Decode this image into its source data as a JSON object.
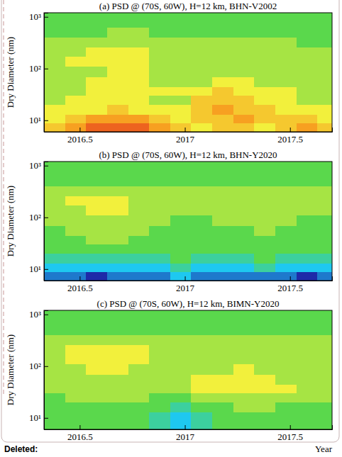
{
  "chart_data": [
    {
      "type": "heatmap",
      "title": "(a) PSD @ (70S, 60W), H=12 km, BHN-V2002",
      "ylabel": "Dry Diameter (nm)",
      "log": "y",
      "xlim": [
        2016.33,
        2017.7
      ],
      "xticks": [
        2016.5,
        2017,
        2017.5
      ],
      "ylim": [
        6,
        1200
      ],
      "yticks": [
        {
          "value": 10,
          "label": "10¹"
        },
        {
          "value": 100,
          "label": "10²"
        },
        {
          "value": 1000,
          "label": "10³"
        }
      ],
      "x_bins": [
        2016.33,
        2016.43,
        2016.53,
        2016.63,
        2016.73,
        2016.83,
        2016.93,
        2017.03,
        2017.13,
        2017.23,
        2017.33,
        2017.43,
        2017.53,
        2017.63,
        2017.73
      ],
      "y_bins": [
        6,
        9,
        13,
        20,
        30,
        45,
        70,
        110,
        170,
        260,
        400,
        620,
        1200
      ],
      "zlim": [
        0,
        10
      ],
      "values": [
        [
          7,
          8,
          9,
          9,
          9,
          8,
          7,
          6,
          7,
          7,
          6,
          7,
          8,
          7
        ],
        [
          6,
          7,
          8,
          8,
          8,
          7,
          6,
          7,
          7,
          8,
          7,
          7,
          7,
          6
        ],
        [
          6,
          6,
          6,
          7,
          6,
          6,
          6,
          7,
          8,
          7,
          7,
          6,
          6,
          6
        ],
        [
          5,
          6,
          6,
          6,
          6,
          5,
          5,
          7,
          7,
          7,
          6,
          6,
          5,
          5
        ],
        [
          5,
          5,
          6,
          6,
          6,
          6,
          6,
          6,
          7,
          6,
          6,
          6,
          5,
          5
        ],
        [
          5,
          5,
          6,
          6,
          6,
          5,
          5,
          5,
          6,
          6,
          5,
          5,
          5,
          5
        ],
        [
          5,
          5,
          5,
          6,
          6,
          5,
          5,
          5,
          5,
          5,
          5,
          5,
          5,
          5
        ],
        [
          5,
          6,
          6,
          6,
          6,
          5,
          5,
          5,
          5,
          5,
          5,
          5,
          5,
          5
        ],
        [
          5,
          5,
          6,
          6,
          6,
          5,
          5,
          5,
          5,
          5,
          5,
          5,
          5,
          5
        ],
        [
          5,
          5,
          5,
          5,
          5,
          5,
          5,
          5,
          5,
          5,
          5,
          5,
          4,
          4
        ],
        [
          4,
          4,
          4,
          5,
          5,
          4,
          4,
          4,
          4,
          4,
          4,
          4,
          4,
          4
        ],
        [
          4,
          4,
          4,
          4,
          4,
          4,
          4,
          4,
          4,
          4,
          4,
          4,
          4,
          4
        ]
      ]
    },
    {
      "type": "heatmap",
      "title": "(b) PSD @ (70S, 60W), H=12 km, BHN-Y2020",
      "ylabel": "Dry Diameter (nm)",
      "log": "y",
      "xlim": [
        2016.33,
        2017.7
      ],
      "xticks": [
        2016.5,
        2017,
        2017.5
      ],
      "ylim": [
        6,
        1200
      ],
      "yticks": [
        {
          "value": 10,
          "label": "10¹"
        },
        {
          "value": 100,
          "label": "10²"
        },
        {
          "value": 1000,
          "label": "10³"
        }
      ],
      "x_bins": [
        2016.33,
        2016.43,
        2016.53,
        2016.63,
        2016.73,
        2016.83,
        2016.93,
        2017.03,
        2017.13,
        2017.23,
        2017.33,
        2017.43,
        2017.53,
        2017.63,
        2017.73
      ],
      "y_bins": [
        6,
        9,
        13,
        20,
        30,
        45,
        70,
        110,
        170,
        260,
        400,
        620,
        1200
      ],
      "zlim": [
        0,
        10
      ],
      "values": [
        [
          1,
          1,
          0,
          1,
          1,
          1,
          2,
          1,
          1,
          1,
          1,
          1,
          0,
          1
        ],
        [
          2,
          2,
          2,
          2,
          2,
          2,
          3,
          2,
          2,
          2,
          3,
          2,
          2,
          2
        ],
        [
          3,
          3,
          3,
          3,
          3,
          3,
          4,
          3,
          3,
          3,
          4,
          3,
          3,
          3
        ],
        [
          4,
          4,
          4,
          4,
          4,
          4,
          4,
          4,
          4,
          4,
          4,
          4,
          4,
          4
        ],
        [
          4,
          4,
          5,
          5,
          4,
          4,
          4,
          4,
          4,
          4,
          4,
          4,
          4,
          4
        ],
        [
          4,
          5,
          5,
          5,
          5,
          4,
          4,
          4,
          4,
          4,
          5,
          4,
          4,
          4
        ],
        [
          5,
          5,
          5,
          5,
          5,
          5,
          4,
          4,
          5,
          5,
          5,
          5,
          4,
          4
        ],
        [
          5,
          5,
          6,
          6,
          5,
          5,
          5,
          5,
          5,
          5,
          5,
          5,
          5,
          5
        ],
        [
          5,
          6,
          6,
          6,
          5,
          5,
          5,
          5,
          5,
          5,
          5,
          5,
          5,
          5
        ],
        [
          5,
          5,
          5,
          5,
          5,
          5,
          5,
          5,
          5,
          5,
          5,
          5,
          5,
          5
        ],
        [
          4,
          4,
          4,
          4,
          4,
          4,
          4,
          4,
          4,
          4,
          4,
          4,
          4,
          4
        ],
        [
          4,
          4,
          4,
          4,
          4,
          4,
          4,
          4,
          4,
          4,
          4,
          4,
          4,
          4
        ]
      ]
    },
    {
      "type": "heatmap",
      "title": "(c) PSD @ (70S, 60W), H=12 km, BIMN-Y2020",
      "ylabel": "Dry Diameter (nm)",
      "xlabel": "Year",
      "log": "y",
      "xlim": [
        2016.33,
        2017.7
      ],
      "xticks": [
        2016.5,
        2017,
        2017.5
      ],
      "ylim": [
        6,
        1200
      ],
      "yticks": [
        {
          "value": 10,
          "label": "10¹"
        },
        {
          "value": 100,
          "label": "10²"
        },
        {
          "value": 1000,
          "label": "10³"
        }
      ],
      "x_bins": [
        2016.33,
        2016.43,
        2016.53,
        2016.63,
        2016.73,
        2016.83,
        2016.93,
        2017.03,
        2017.13,
        2017.23,
        2017.33,
        2017.43,
        2017.53,
        2017.63,
        2017.73
      ],
      "y_bins": [
        6,
        9,
        13,
        20,
        30,
        45,
        70,
        110,
        170,
        260,
        400,
        620,
        1200
      ],
      "zlim": [
        0,
        10
      ],
      "values": [
        [
          4,
          4,
          4,
          4,
          4,
          3,
          2,
          3,
          4,
          4,
          4,
          4,
          4,
          4
        ],
        [
          4,
          4,
          4,
          4,
          4,
          3,
          2,
          3,
          4,
          4,
          4,
          4,
          4,
          4
        ],
        [
          4,
          4,
          4,
          4,
          4,
          4,
          3,
          4,
          4,
          5,
          5,
          4,
          4,
          4
        ],
        [
          4,
          5,
          5,
          5,
          5,
          4,
          4,
          5,
          5,
          5,
          5,
          5,
          5,
          5
        ],
        [
          5,
          5,
          5,
          5,
          5,
          5,
          5,
          6,
          6,
          6,
          6,
          6,
          5,
          5
        ],
        [
          5,
          5,
          5,
          5,
          5,
          5,
          5,
          6,
          6,
          6,
          6,
          5,
          5,
          5
        ],
        [
          5,
          5,
          6,
          6,
          5,
          5,
          5,
          5,
          5,
          6,
          5,
          5,
          5,
          5
        ],
        [
          5,
          6,
          6,
          6,
          6,
          5,
          5,
          5,
          5,
          5,
          5,
          5,
          5,
          5
        ],
        [
          5,
          6,
          6,
          6,
          6,
          5,
          5,
          5,
          5,
          5,
          5,
          5,
          5,
          5
        ],
        [
          5,
          5,
          5,
          5,
          5,
          5,
          5,
          5,
          5,
          5,
          5,
          5,
          5,
          5
        ],
        [
          4,
          4,
          4,
          4,
          4,
          4,
          4,
          4,
          4,
          4,
          4,
          4,
          4,
          4
        ],
        [
          4,
          4,
          4,
          4,
          4,
          4,
          4,
          4,
          4,
          4,
          4,
          4,
          4,
          4
        ]
      ]
    }
  ],
  "footer_label": "Deleted:"
}
